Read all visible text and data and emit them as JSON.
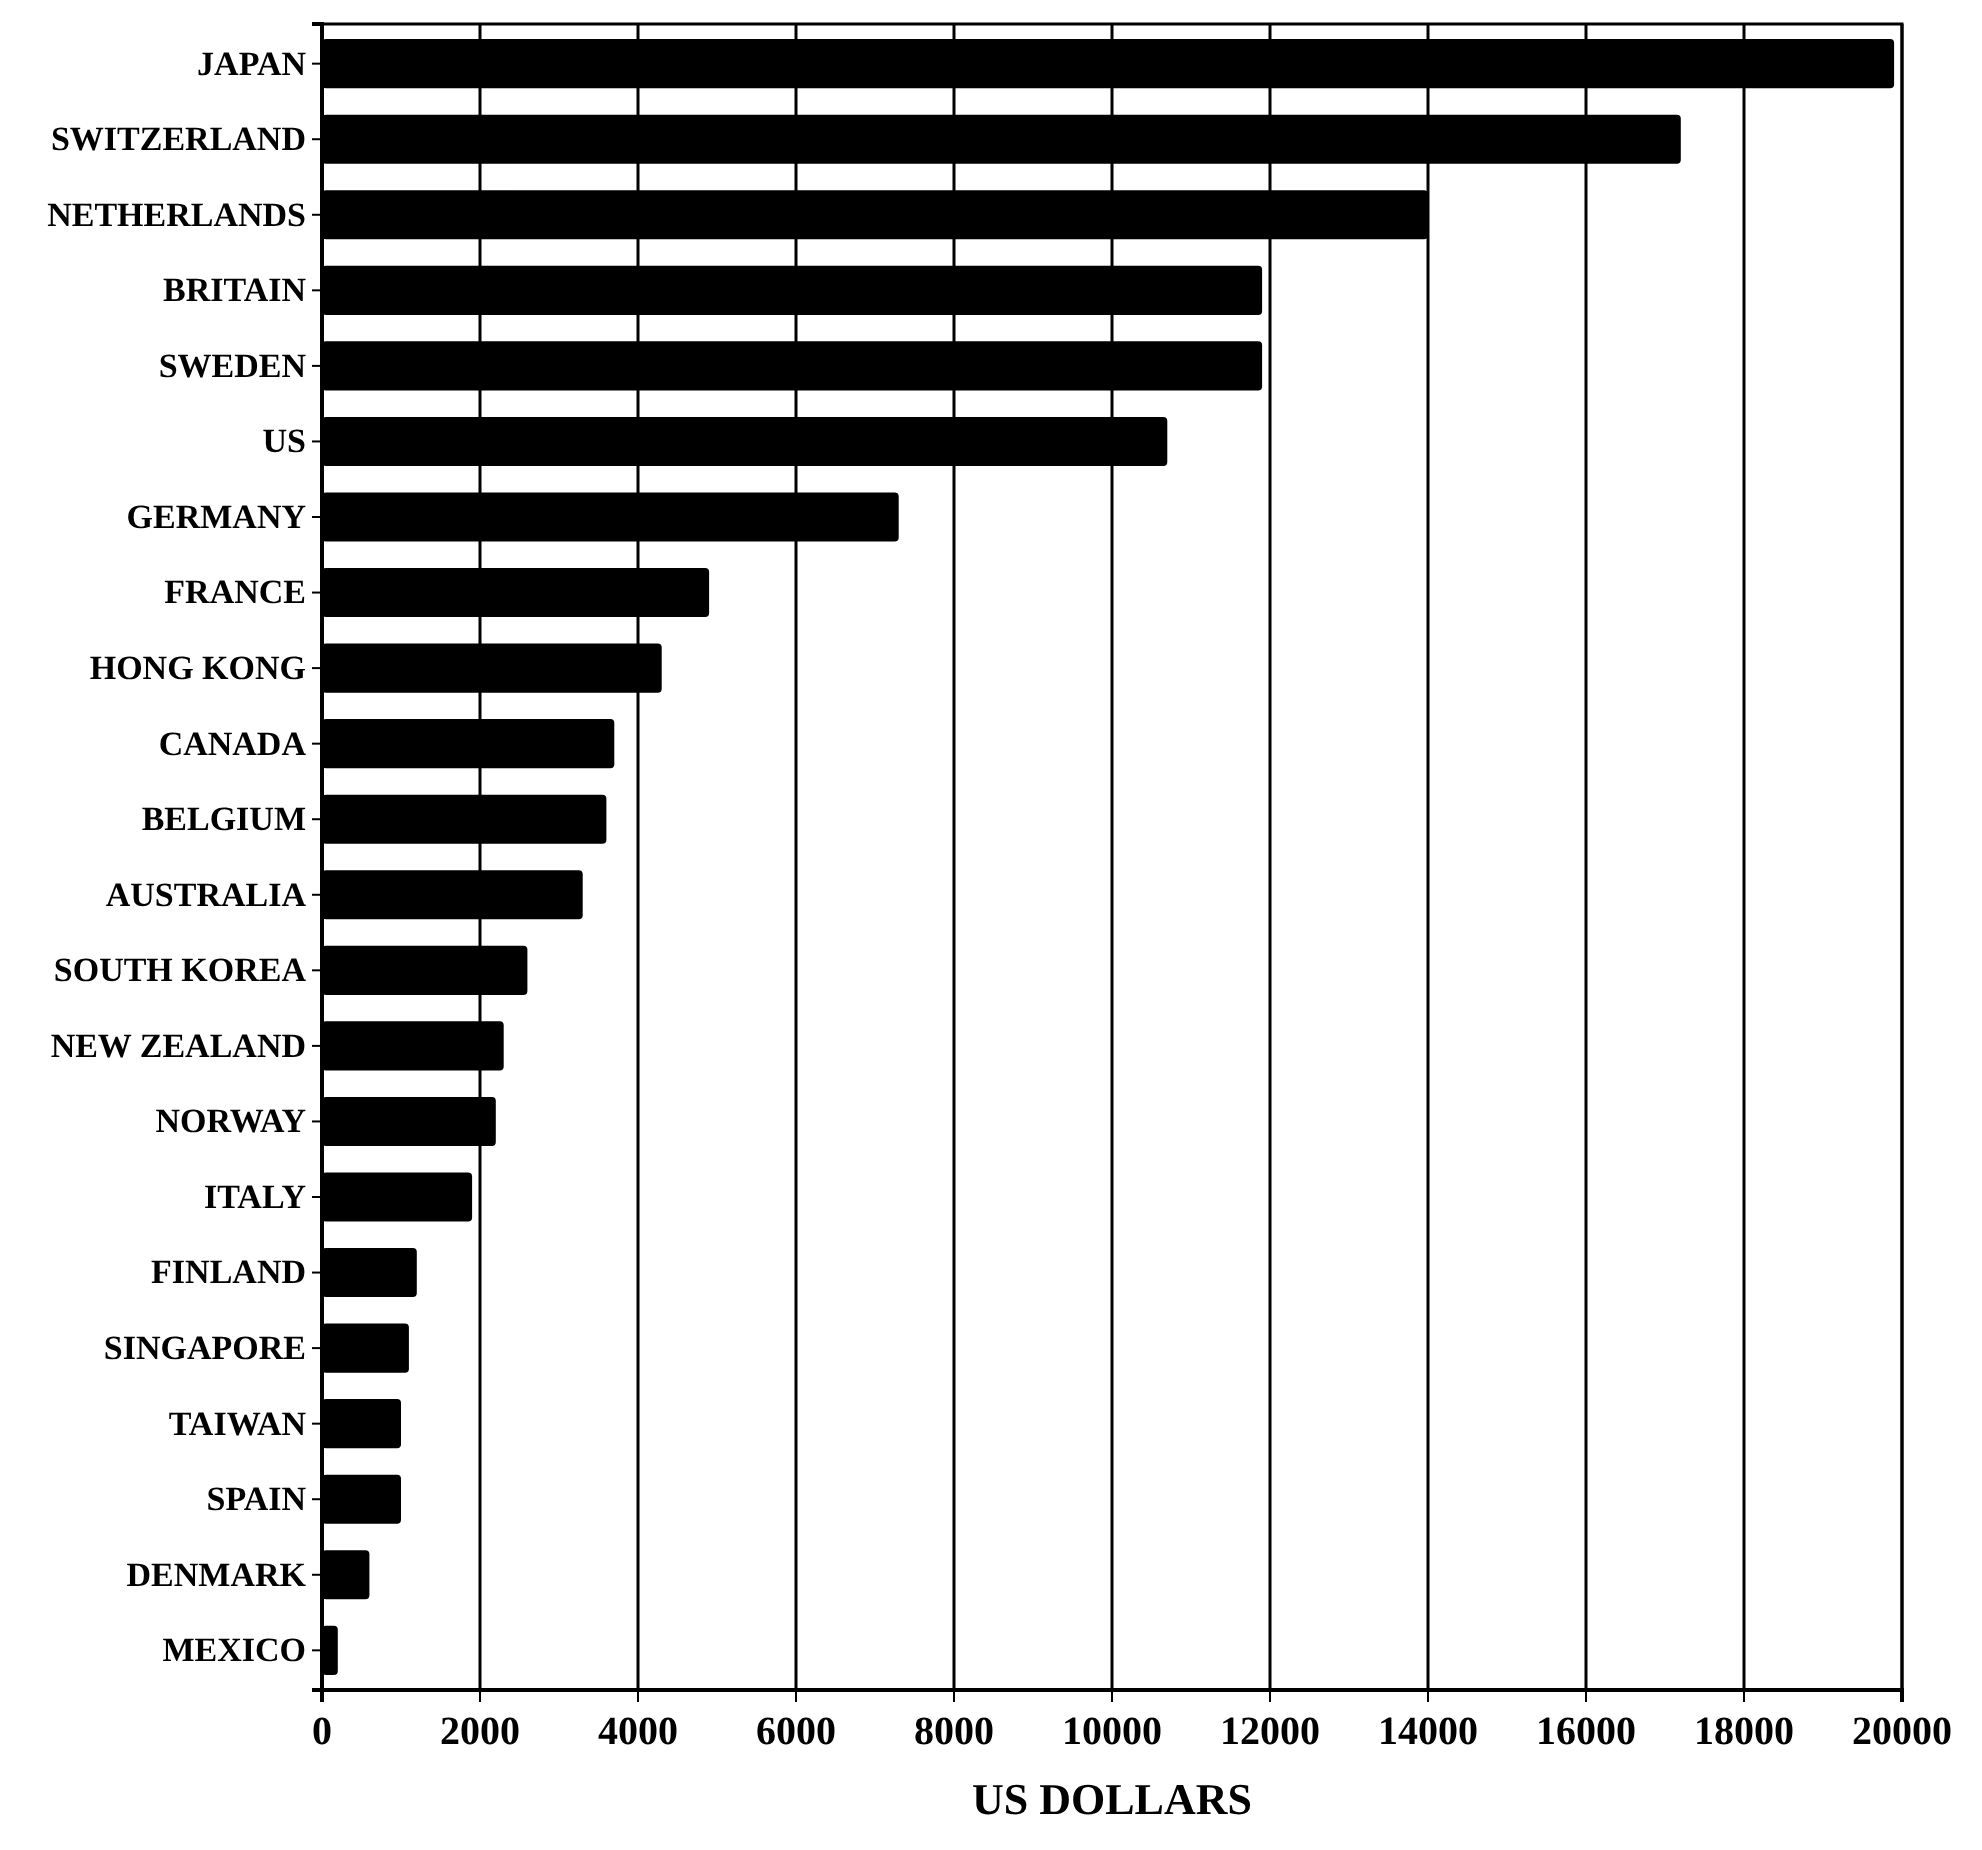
{
  "chart_data": {
    "type": "bar",
    "orientation": "horizontal",
    "xlabel": "US DOLLARS",
    "categories": [
      "JAPAN",
      "SWITZERLAND",
      "NETHERLANDS",
      "BRITAIN",
      "SWEDEN",
      "US",
      "GERMANY",
      "FRANCE",
      "HONG KONG",
      "CANADA",
      "BELGIUM",
      "AUSTRALIA",
      "SOUTH KOREA",
      "NEW ZEALAND",
      "NORWAY",
      "ITALY",
      "FINLAND",
      "SINGAPORE",
      "TAIWAN",
      "SPAIN",
      "DENMARK",
      "MEXICO"
    ],
    "values": [
      19900,
      17200,
      14000,
      11900,
      11900,
      10700,
      7300,
      4900,
      4300,
      3700,
      3600,
      3300,
      2600,
      2300,
      2200,
      1900,
      1200,
      1100,
      1000,
      1000,
      600,
      200
    ],
    "color": "#000000",
    "xlim": [
      0,
      20000
    ],
    "xticks": [
      0,
      2000,
      4000,
      6000,
      8000,
      10000,
      12000,
      14000,
      16000,
      18000,
      20000
    ],
    "grid": "x"
  }
}
